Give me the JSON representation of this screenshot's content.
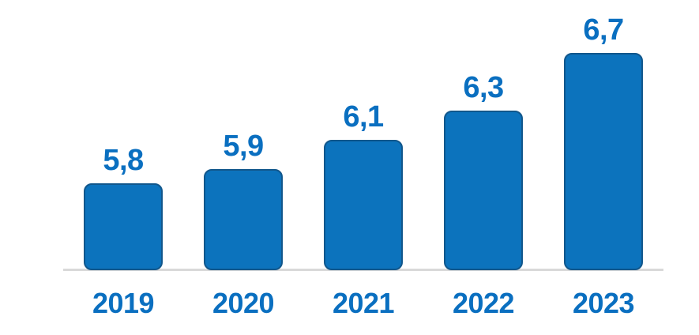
{
  "chart_data": {
    "type": "bar",
    "categories": [
      "2019",
      "2020",
      "2021",
      "2022",
      "2023"
    ],
    "values": [
      5.8,
      5.9,
      6.1,
      6.3,
      6.7
    ],
    "value_labels": [
      "5,8",
      "5,9",
      "6,1",
      "6,3",
      "6,7"
    ],
    "title": "",
    "xlabel": "",
    "ylabel": "",
    "ylim": [
      5.2,
      6.9
    ],
    "grid": false,
    "legend_position": "none",
    "decimal_separator": ",",
    "colors": {
      "bar_fill": "#0C73BD",
      "bar_outline": "#11578C",
      "label_text": "#0A6FC0",
      "axis_line": "#D9D9D9",
      "background": "#FFFFFF"
    }
  }
}
